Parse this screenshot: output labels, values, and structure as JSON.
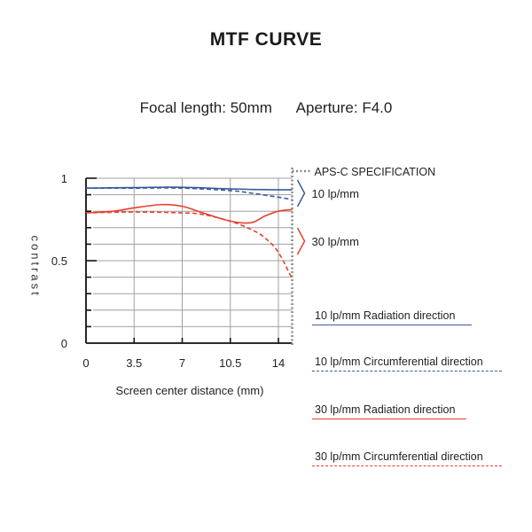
{
  "title": "MTF CURVE",
  "subtitle": {
    "focal_length": "Focal length: 50mm",
    "aperture": "Aperture: F4.0"
  },
  "colors": {
    "blue": "#3b5a9a",
    "red": "#e8402f",
    "grid": "#a0a0a0",
    "axis": "#111111",
    "spec": "#888888"
  },
  "annotations": {
    "spec_label": "APS-C SPECIFICATION",
    "group_10": "10 lp/mm",
    "group_30": "30 lp/mm"
  },
  "legend": [
    {
      "label": "10 lp/mm Radiation direction",
      "color": "#3b5a9a",
      "style": "solid"
    },
    {
      "label": "10 lp/mm Circumferential direction",
      "color": "#3b5a9a",
      "style": "dashed"
    },
    {
      "label": "30 lp/mm Radiation direction",
      "color": "#e8402f",
      "style": "solid"
    },
    {
      "label": "30 lp/mm Circumferential direction",
      "color": "#e8402f",
      "style": "dashed"
    }
  ],
  "chart_data": {
    "type": "line",
    "title": "MTF CURVE",
    "subtitle": "Focal length: 50mm   Aperture: F4.0",
    "xlabel": "Screen center distance (mm)",
    "ylabel": "contrast",
    "xlim": [
      0,
      15
    ],
    "ylim": [
      0,
      1
    ],
    "x_ticks": [
      "0",
      "3.5",
      "7",
      "10.5",
      "14"
    ],
    "y_ticks": [
      "0",
      "0.5",
      "1"
    ],
    "grid": true,
    "spec_line": {
      "x": 15,
      "label": "APS-C SPECIFICATION"
    },
    "series": [
      {
        "name": "10 lp/mm Radiation direction",
        "style": "solid",
        "color": "#3b5a9a",
        "x": [
          0,
          3.5,
          6,
          8,
          10.5,
          12,
          14,
          15
        ],
        "values": [
          0.94,
          0.943,
          0.946,
          0.943,
          0.935,
          0.932,
          0.93,
          0.93
        ]
      },
      {
        "name": "10 lp/mm Circumferential direction",
        "style": "dashed",
        "color": "#3b5a9a",
        "x": [
          0,
          3.5,
          7,
          10.5,
          12,
          14,
          15
        ],
        "values": [
          0.94,
          0.94,
          0.94,
          0.925,
          0.91,
          0.885,
          0.87
        ]
      },
      {
        "name": "30 lp/mm Radiation direction",
        "style": "solid",
        "color": "#e8402f",
        "x": [
          0,
          2,
          3.5,
          5.5,
          7,
          8.5,
          10.5,
          12,
          13,
          14,
          15
        ],
        "values": [
          0.79,
          0.8,
          0.82,
          0.84,
          0.83,
          0.79,
          0.74,
          0.73,
          0.77,
          0.8,
          0.81
        ]
      },
      {
        "name": "30 lp/mm Circumferential direction",
        "style": "dashed",
        "color": "#e8402f",
        "x": [
          0,
          3.5,
          7,
          8.5,
          10.5,
          12,
          13,
          14,
          15
        ],
        "values": [
          0.79,
          0.795,
          0.79,
          0.78,
          0.74,
          0.69,
          0.64,
          0.55,
          0.39
        ]
      }
    ],
    "legend_position": "right"
  }
}
